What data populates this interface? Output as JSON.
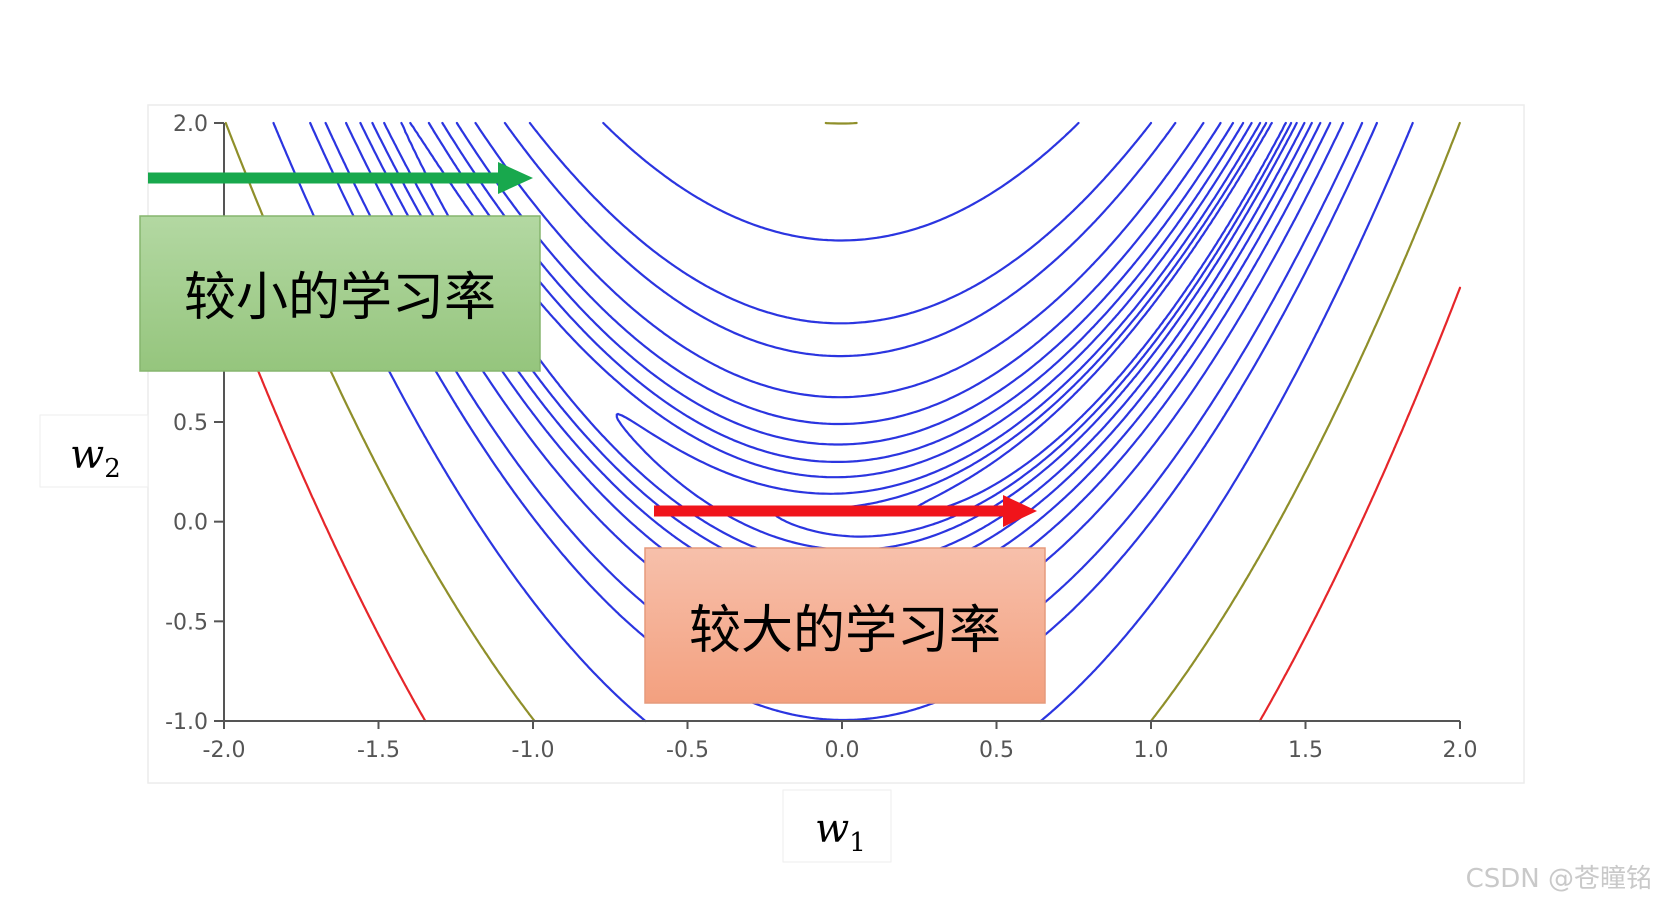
{
  "chart_data": {
    "type": "contour",
    "function": "(1 - w1)^2 + 100*(w2 - w1^2)^2",
    "xlim": [
      -2.0,
      2.0
    ],
    "ylim": [
      -1.0,
      2.0
    ],
    "x_ticks": [
      "-2.0",
      "-1.5",
      "-1.0",
      "-0.5",
      "0.0",
      "0.5",
      "1.0",
      "1.5",
      "2.0"
    ],
    "y_ticks": [
      "-1.0",
      "-0.5",
      "0.0",
      "0.5",
      "2.0"
    ],
    "x_tick_values": [
      -2.0,
      -1.5,
      -1.0,
      -0.5,
      0.0,
      0.5,
      1.0,
      1.5,
      2.0
    ],
    "y_tick_values": [
      -1.0,
      -0.5,
      0.0,
      0.5,
      2.0
    ],
    "contour_levels_blue": [
      0.6,
      1.5,
      3,
      6,
      10,
      16,
      25,
      40,
      70,
      100,
      200
    ],
    "contour_level_olive": 400,
    "contour_level_red": 800,
    "line_colors": {
      "blue": "#2b35e0",
      "olive": "#8f8f2a",
      "red": "#e6262a"
    },
    "xlabel": {
      "var": "w",
      "sub": "1"
    },
    "ylabel": {
      "var": "w",
      "sub": "2"
    },
    "grid": false
  },
  "annotations": {
    "small_lr": {
      "label": "较小的学习率",
      "arrow_color": "#18a84d",
      "box_color": "#9ccb85",
      "arrow_from": [
        -2.25,
        1.73
      ],
      "arrow_to": [
        -1.0,
        1.73
      ]
    },
    "large_lr": {
      "label": "较大的学习率",
      "arrow_color": "#f0141b",
      "box_color": "#f5a98a",
      "arrow_from": [
        -0.62,
        0.06
      ],
      "arrow_to": [
        0.62,
        0.06
      ]
    }
  },
  "watermark": "CSDN @苍瞳铭"
}
